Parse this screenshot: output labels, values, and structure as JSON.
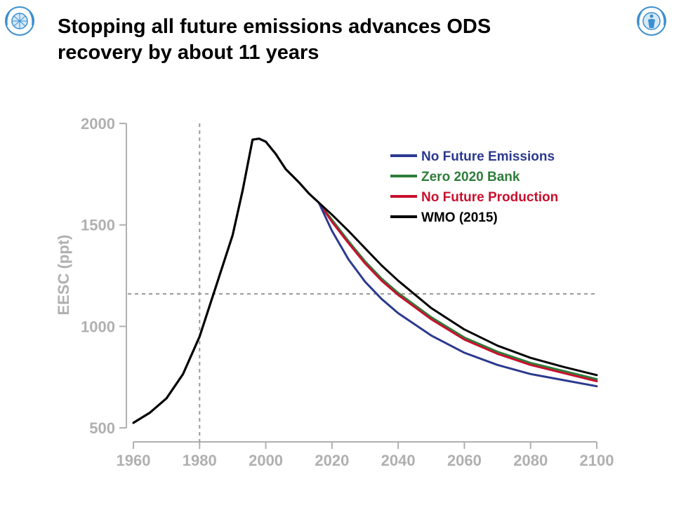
{
  "slide": {
    "title": "Stopping all future emissions advances ODS\nrecovery by about 11 years"
  },
  "logos": {
    "left": "wmo-emblem",
    "right": "unep-emblem"
  },
  "colors": {
    "axis": "#b0b0b0",
    "reference": "#9a9a9a",
    "logo": "#3a8fd0"
  },
  "chart_data": {
    "type": "line",
    "ylabel": "EESC (ppt)",
    "xlabel": "",
    "xlim": [
      1960,
      2100
    ],
    "ylim": [
      500,
      2000
    ],
    "x_ticks": [
      1960,
      1980,
      2000,
      2020,
      2040,
      2060,
      2080,
      2100
    ],
    "y_ticks": [
      500,
      1000,
      1500,
      2000
    ],
    "grid": false,
    "legend_position": "top-right",
    "reference_lines": {
      "x": 1980,
      "y": 1160
    },
    "series": [
      {
        "name": "No Future Emissions",
        "color": "#2b3a8f",
        "points": [
          [
            1960,
            525
          ],
          [
            1965,
            575
          ],
          [
            1970,
            645
          ],
          [
            1975,
            765
          ],
          [
            1980,
            950
          ],
          [
            1985,
            1200
          ],
          [
            1990,
            1450
          ],
          [
            1993,
            1670
          ],
          [
            1996,
            1920
          ],
          [
            1998,
            1925
          ],
          [
            2000,
            1910
          ],
          [
            2003,
            1850
          ],
          [
            2006,
            1775
          ],
          [
            2010,
            1710
          ],
          [
            2013,
            1655
          ],
          [
            2016,
            1610
          ],
          [
            2020,
            1470
          ],
          [
            2025,
            1330
          ],
          [
            2030,
            1220
          ],
          [
            2035,
            1135
          ],
          [
            2040,
            1065
          ],
          [
            2050,
            955
          ],
          [
            2060,
            870
          ],
          [
            2070,
            810
          ],
          [
            2080,
            765
          ],
          [
            2090,
            735
          ],
          [
            2100,
            705
          ]
        ]
      },
      {
        "name": "Zero 2020 Bank",
        "color": "#2e7d3a",
        "points": [
          [
            1960,
            525
          ],
          [
            1965,
            575
          ],
          [
            1970,
            645
          ],
          [
            1975,
            765
          ],
          [
            1980,
            950
          ],
          [
            1985,
            1200
          ],
          [
            1990,
            1450
          ],
          [
            1993,
            1670
          ],
          [
            1996,
            1920
          ],
          [
            1998,
            1925
          ],
          [
            2000,
            1910
          ],
          [
            2003,
            1850
          ],
          [
            2006,
            1775
          ],
          [
            2010,
            1710
          ],
          [
            2013,
            1655
          ],
          [
            2016,
            1610
          ],
          [
            2020,
            1525
          ],
          [
            2025,
            1420
          ],
          [
            2030,
            1320
          ],
          [
            2035,
            1235
          ],
          [
            2040,
            1165
          ],
          [
            2050,
            1045
          ],
          [
            2060,
            945
          ],
          [
            2070,
            875
          ],
          [
            2080,
            820
          ],
          [
            2090,
            780
          ],
          [
            2100,
            740
          ]
        ]
      },
      {
        "name": "No Future Production",
        "color": "#c8102e",
        "points": [
          [
            1960,
            525
          ],
          [
            1965,
            575
          ],
          [
            1970,
            645
          ],
          [
            1975,
            765
          ],
          [
            1980,
            950
          ],
          [
            1985,
            1200
          ],
          [
            1990,
            1450
          ],
          [
            1993,
            1670
          ],
          [
            1996,
            1920
          ],
          [
            1998,
            1925
          ],
          [
            2000,
            1910
          ],
          [
            2003,
            1850
          ],
          [
            2006,
            1775
          ],
          [
            2010,
            1710
          ],
          [
            2013,
            1655
          ],
          [
            2016,
            1610
          ],
          [
            2020,
            1515
          ],
          [
            2025,
            1410
          ],
          [
            2030,
            1310
          ],
          [
            2035,
            1225
          ],
          [
            2040,
            1155
          ],
          [
            2050,
            1035
          ],
          [
            2060,
            935
          ],
          [
            2070,
            865
          ],
          [
            2080,
            810
          ],
          [
            2090,
            770
          ],
          [
            2100,
            730
          ]
        ]
      },
      {
        "name": "WMO (2015)",
        "color": "#000000",
        "points": [
          [
            1960,
            525
          ],
          [
            1965,
            575
          ],
          [
            1970,
            645
          ],
          [
            1975,
            765
          ],
          [
            1980,
            950
          ],
          [
            1985,
            1200
          ],
          [
            1990,
            1450
          ],
          [
            1993,
            1670
          ],
          [
            1996,
            1920
          ],
          [
            1998,
            1925
          ],
          [
            2000,
            1910
          ],
          [
            2003,
            1850
          ],
          [
            2006,
            1775
          ],
          [
            2010,
            1710
          ],
          [
            2013,
            1655
          ],
          [
            2016,
            1610
          ],
          [
            2020,
            1550
          ],
          [
            2025,
            1470
          ],
          [
            2030,
            1385
          ],
          [
            2035,
            1300
          ],
          [
            2040,
            1225
          ],
          [
            2050,
            1090
          ],
          [
            2060,
            985
          ],
          [
            2070,
            905
          ],
          [
            2080,
            845
          ],
          [
            2090,
            800
          ],
          [
            2100,
            760
          ]
        ]
      }
    ]
  }
}
